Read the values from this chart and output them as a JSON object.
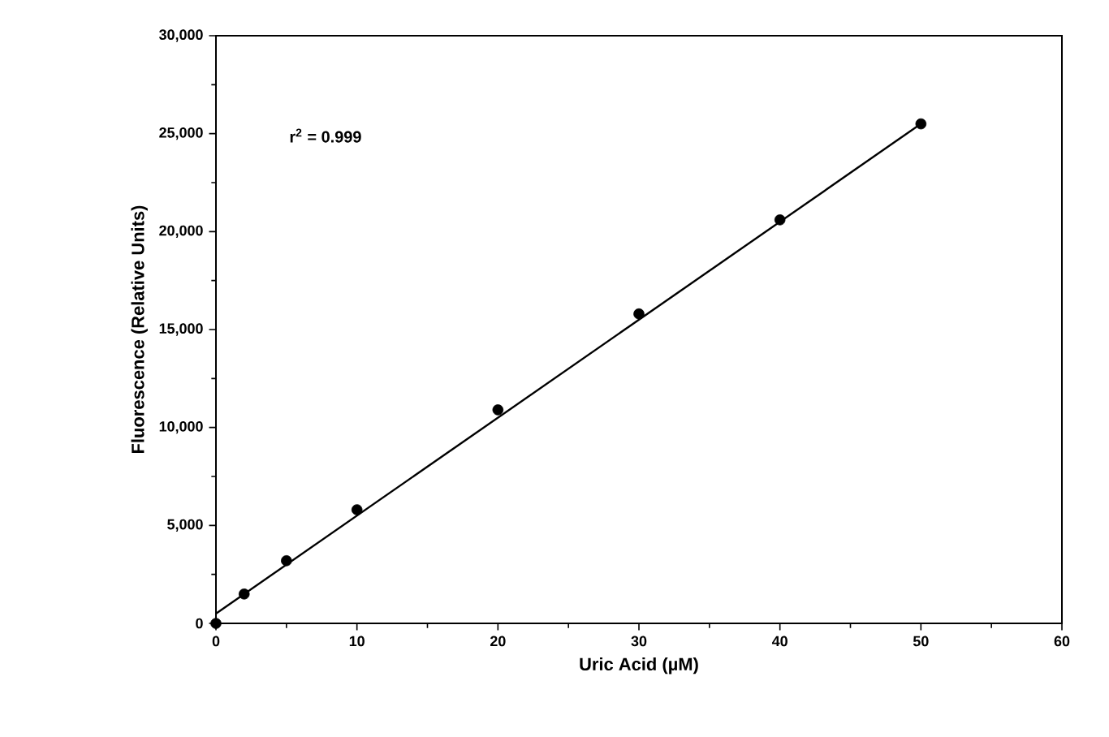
{
  "chart_data": {
    "type": "scatter",
    "xlabel": "Uric Acid (µM)",
    "ylabel": "Fluorescence (Relative Units)",
    "annotations": [
      "r$^{2}$ = 0.999"
    ],
    "xlim": [
      0,
      60
    ],
    "xticks": [
      0,
      10,
      20,
      30,
      40,
      50,
      60
    ],
    "ylim": [
      0,
      30000
    ],
    "yticks": [
      {
        "value": 0,
        "label": "0"
      },
      {
        "value": 5000,
        "label": "5,000"
      },
      {
        "value": 10000,
        "label": "10,000"
      },
      {
        "value": 15000,
        "label": "15,000"
      },
      {
        "value": 20000,
        "label": "20,000"
      },
      {
        "value": 25000,
        "label": "25,000"
      },
      {
        "value": 30000,
        "label": "30,000"
      }
    ],
    "grid": false,
    "series": [
      {
        "marker": "circle",
        "color": "#000000",
        "x": [
          0,
          2,
          5,
          10,
          20,
          30,
          40,
          50
        ],
        "values": [
          0,
          1500,
          3200,
          5800,
          10900,
          15800,
          20600,
          25500
        ]
      },
      {
        "type": "line",
        "marker": "none",
        "line_style": "solid",
        "color": "#000000",
        "x": [
          0,
          50
        ],
        "values": [
          500,
          25500
        ]
      }
    ]
  }
}
